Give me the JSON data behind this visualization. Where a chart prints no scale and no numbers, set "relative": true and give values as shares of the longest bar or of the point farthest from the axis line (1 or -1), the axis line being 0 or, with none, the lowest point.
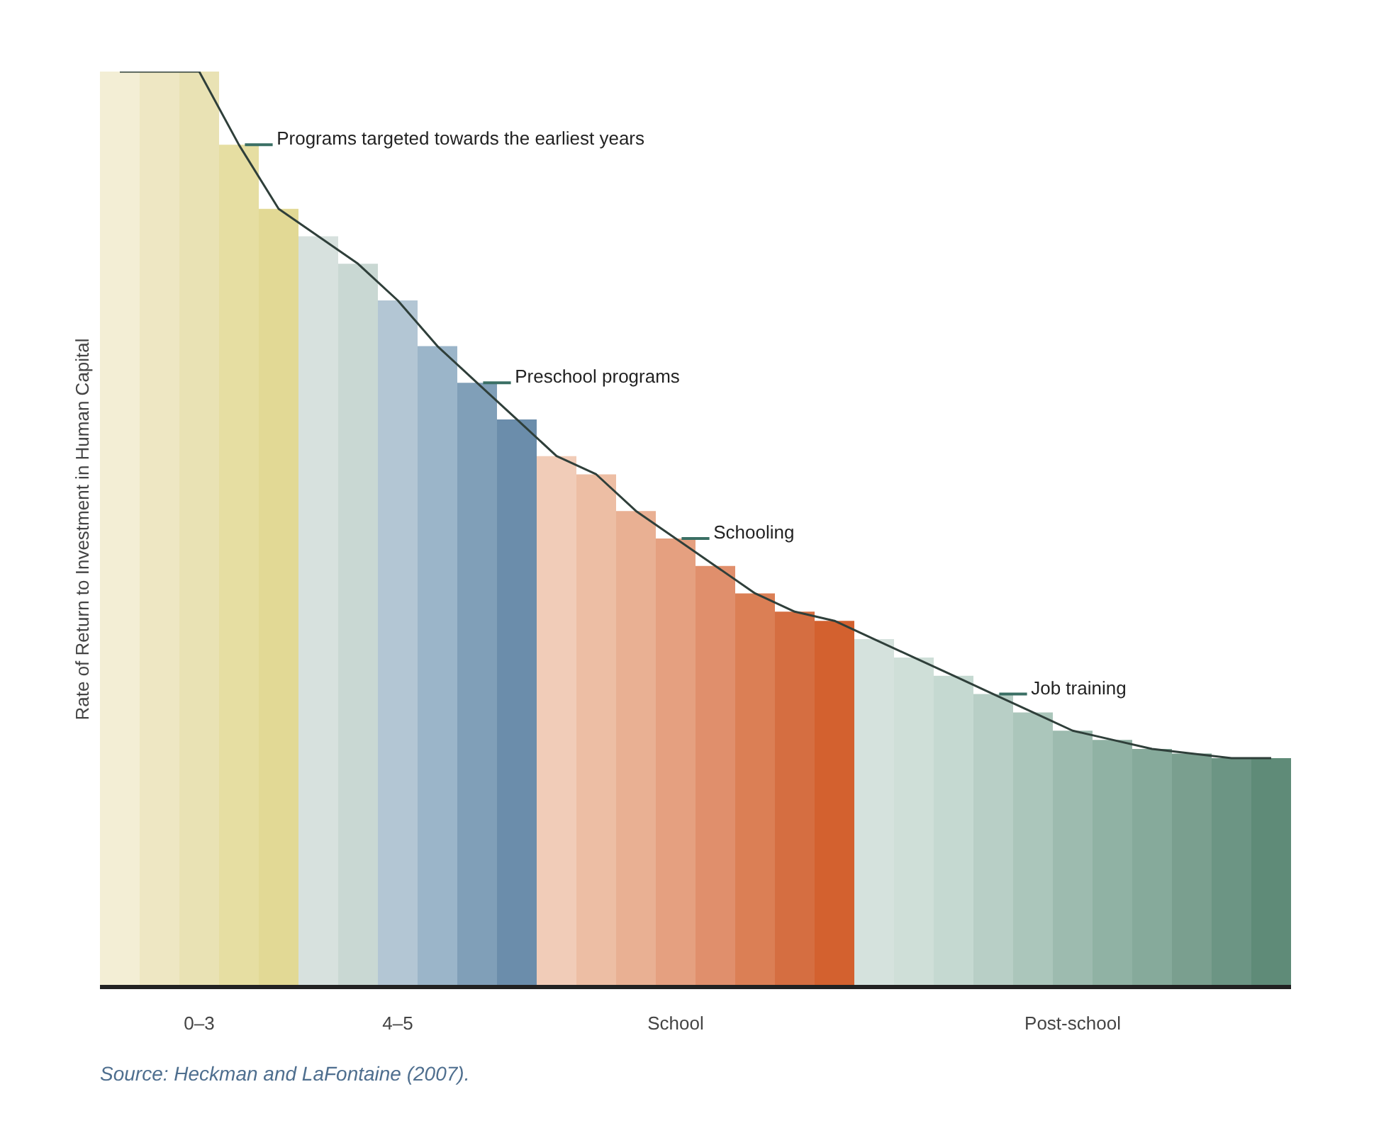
{
  "chart_data": {
    "type": "bar",
    "relative": true,
    "ylabel": "Rate of Return to Investment in Human Capital",
    "categories": [
      null,
      null,
      "0–3",
      null,
      null,
      null,
      null,
      "4–5",
      null,
      null,
      null,
      null,
      null,
      null,
      "School",
      null,
      null,
      null,
      null,
      null,
      null,
      null,
      null,
      null,
      "Post-school",
      null,
      null,
      null,
      null,
      null
    ],
    "series": [
      {
        "values": [
          1,
          1,
          1,
          0.92,
          0.85,
          0.82,
          0.79,
          0.75,
          0.7,
          0.66,
          0.62,
          0.58,
          0.56,
          0.52,
          0.49,
          0.46,
          0.43,
          0.41,
          0.4,
          0.38,
          0.36,
          0.34,
          0.32,
          0.3,
          0.28,
          0.27,
          0.26,
          0.255,
          0.25,
          0.25
        ],
        "colors": [
          "#f3eed5",
          "#eee7c3",
          "#e9e2b4",
          "#e6dea2",
          "#e2d995",
          "#d7e1de",
          "#c9d8d3",
          "#b3c6d4",
          "#9bb5c9",
          "#809fb8",
          "#6b8dab",
          "#f1ccb8",
          "#edbea4",
          "#e9b093",
          "#e5a080",
          "#e08f6c",
          "#db7f55",
          "#d56e41",
          "#d3612f",
          "#d5e2dd",
          "#cfdfd8",
          "#c5d9d1",
          "#b8cfc6",
          "#abc6bb",
          "#9dbbaf",
          "#90b2a4",
          "#86aa9b",
          "#7a9f8f",
          "#6c9584",
          "#5f8b78"
        ]
      },
      {
        "type": "line",
        "color": "#2f3f3a",
        "values": [
          1,
          1,
          1,
          0.92,
          0.85,
          0.82,
          0.79,
          0.75,
          0.7,
          0.66,
          0.62,
          0.58,
          0.56,
          0.52,
          0.49,
          0.46,
          0.43,
          0.41,
          0.4,
          0.38,
          0.36,
          0.34,
          0.32,
          0.3,
          0.28,
          0.27,
          0.26,
          0.255,
          0.25,
          0.25
        ]
      }
    ],
    "annotations": [
      "Programs targeted towards the earliest years",
      "Preschool programs",
      "Schooling",
      "Job training",
      "Source: Heckman and LaFontaine (2007)."
    ]
  }
}
